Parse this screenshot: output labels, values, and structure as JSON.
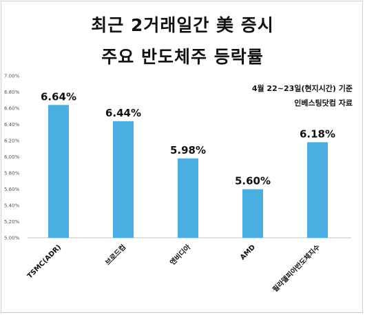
{
  "chart_data": {
    "type": "bar",
    "title": "최근 2거래일간 美 증시",
    "subtitle": "주요 반도체주 등락률",
    "annotations": [
      "4월 22~23일(현지시간) 기준",
      "인베스팅닷컴 자료"
    ],
    "categories": [
      "TSMC(ADR)",
      "브로드컴",
      "엔비디아",
      "AMD",
      "필라델피아반도체지수"
    ],
    "values": [
      6.64,
      6.44,
      5.98,
      5.6,
      6.18
    ],
    "value_labels": [
      "6.64%",
      "6.44%",
      "5.98%",
      "5.60%",
      "6.18%"
    ],
    "yticks": [
      "5.00%",
      "5.20%",
      "5.40%",
      "5.60%",
      "5.80%",
      "6.00%",
      "6.20%",
      "6.40%",
      "6.60%",
      "6.80%",
      "7.00%"
    ],
    "ylim": [
      5.0,
      7.0
    ],
    "grid": false,
    "bar_color": "#4aaee0"
  }
}
